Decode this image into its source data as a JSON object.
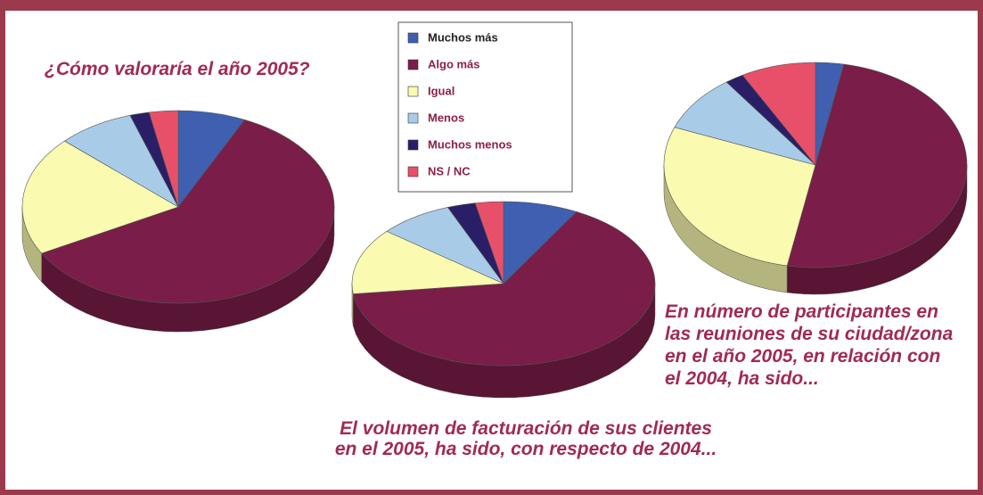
{
  "legend": {
    "categories": [
      "Muchos más",
      "Algo más",
      "Igual",
      "Menos",
      "Muchos menos",
      "NS / NC"
    ],
    "colors": [
      "#3f5fb0",
      "#7a1d48",
      "#fafab0",
      "#a8cce8",
      "#2a1f66",
      "#e8506a"
    ]
  },
  "chart_data": [
    {
      "type": "pie",
      "title": [
        "¿Cómo valoraría el año 2005?"
      ],
      "values": [
        7,
        60,
        20,
        8,
        2,
        3
      ]
    },
    {
      "type": "pie",
      "title": [
        "El volumen de facturación de sus clientes",
        "en el 2005, ha sido, con respecto de 2004..."
      ],
      "values": [
        8,
        65,
        13,
        8,
        3,
        3
      ]
    },
    {
      "type": "pie",
      "title": [
        "En número de participantes en",
        "las reuniones de su ciudad/zona",
        "en el año 2005, en relación con",
        "el 2004, ha sido..."
      ],
      "values": [
        3,
        50,
        28,
        9,
        2,
        8
      ]
    }
  ]
}
